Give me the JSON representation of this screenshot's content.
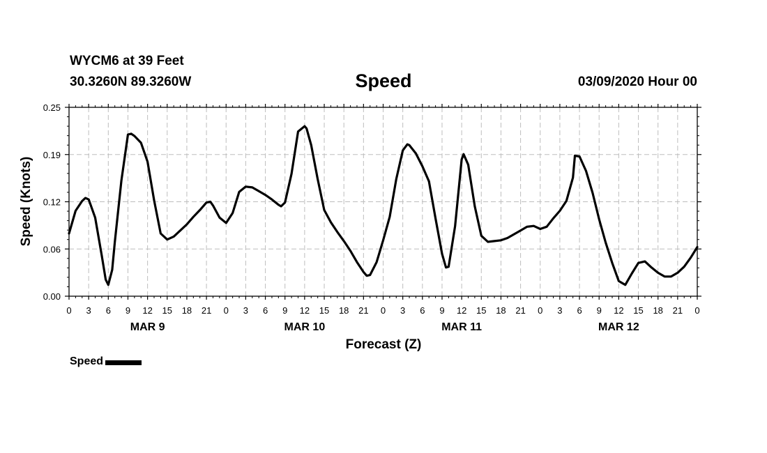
{
  "header": {
    "station": "WYCM6 at 39 Feet",
    "coords": "30.3260N 89.3260W",
    "title": "Speed",
    "runtime": "03/09/2020 Hour 00"
  },
  "chart_data": {
    "type": "line",
    "title": "Speed",
    "xlabel": "Forecast (Z)",
    "ylabel": "Speed (Knots)",
    "xlim": [
      0,
      96
    ],
    "ylim": [
      0,
      0.25
    ],
    "y_ticks": [
      "0.00",
      "0.06",
      "0.12",
      "0.19",
      "0.25"
    ],
    "x_ticks": [
      "0",
      "3",
      "6",
      "9",
      "12",
      "15",
      "18",
      "21",
      "0",
      "3",
      "6",
      "9",
      "12",
      "15",
      "18",
      "21",
      "0",
      "3",
      "6",
      "9",
      "12",
      "15",
      "18",
      "21",
      "0",
      "3",
      "6",
      "9",
      "12",
      "15",
      "18",
      "21",
      "0"
    ],
    "day_labels": [
      "MAR 9",
      "MAR 10",
      "MAR 11",
      "MAR 12"
    ],
    "grid": true,
    "series": [
      {
        "name": "Speed",
        "color": "#000000",
        "x": [
          0,
          1,
          2,
          2.5,
          3,
          4,
          5,
          5.6,
          6,
          6.6,
          7,
          8,
          9,
          9.5,
          10,
          11,
          12,
          13,
          14,
          15,
          16,
          17,
          18,
          19,
          20,
          21,
          21.6,
          22,
          23,
          24,
          25,
          26,
          27,
          28,
          29,
          30,
          31,
          32,
          32.4,
          33,
          34,
          35,
          36,
          36.3,
          37,
          38,
          39,
          40,
          41,
          42,
          43,
          44,
          45,
          45.5,
          46,
          47,
          48,
          49,
          50,
          51,
          51.7,
          52,
          53,
          54,
          55,
          56,
          57,
          57.6,
          58,
          59,
          60,
          60.3,
          61,
          62,
          63,
          64,
          65,
          66,
          67,
          68,
          69,
          70,
          71,
          72,
          73,
          74,
          75,
          76,
          77,
          77.3,
          78,
          79,
          80,
          81,
          82,
          83,
          84,
          85,
          86,
          87,
          88,
          89,
          90,
          91,
          92,
          93,
          94,
          95,
          96
        ],
        "values": [
          0.083,
          0.113,
          0.126,
          0.13,
          0.128,
          0.104,
          0.054,
          0.022,
          0.015,
          0.035,
          0.072,
          0.153,
          0.214,
          0.215,
          0.212,
          0.203,
          0.178,
          0.127,
          0.083,
          0.075,
          0.079,
          0.087,
          0.095,
          0.105,
          0.114,
          0.124,
          0.125,
          0.12,
          0.104,
          0.097,
          0.11,
          0.138,
          0.145,
          0.144,
          0.139,
          0.134,
          0.128,
          0.121,
          0.119,
          0.124,
          0.162,
          0.218,
          0.225,
          0.222,
          0.2,
          0.155,
          0.114,
          0.098,
          0.085,
          0.073,
          0.06,
          0.045,
          0.032,
          0.027,
          0.028,
          0.045,
          0.074,
          0.105,
          0.155,
          0.193,
          0.201,
          0.2,
          0.189,
          0.172,
          0.152,
          0.103,
          0.056,
          0.038,
          0.039,
          0.093,
          0.181,
          0.188,
          0.174,
          0.119,
          0.08,
          0.072,
          0.073,
          0.074,
          0.077,
          0.082,
          0.087,
          0.092,
          0.093,
          0.089,
          0.092,
          0.103,
          0.113,
          0.126,
          0.157,
          0.186,
          0.185,
          0.166,
          0.137,
          0.102,
          0.071,
          0.044,
          0.02,
          0.015,
          0.03,
          0.044,
          0.046,
          0.038,
          0.031,
          0.026,
          0.026,
          0.031,
          0.039,
          0.051,
          0.065
        ]
      }
    ]
  }
}
